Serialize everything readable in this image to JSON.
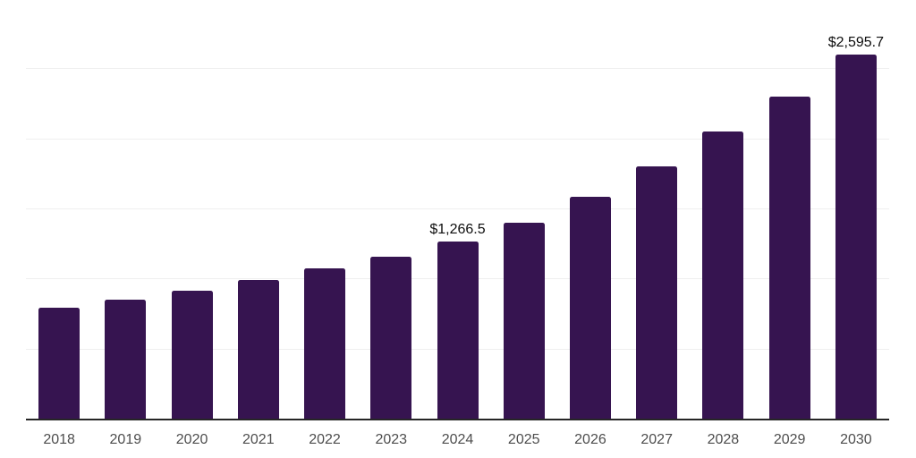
{
  "chart_data": {
    "type": "bar",
    "title": "",
    "xlabel": "",
    "ylabel": "",
    "legend": "none",
    "grid": "horizontal",
    "ylim": [
      0,
      3000
    ],
    "gridline_step": 500,
    "y_tick_labels_visible": false,
    "categories": [
      "2018",
      "2019",
      "2020",
      "2021",
      "2022",
      "2023",
      "2024",
      "2025",
      "2026",
      "2027",
      "2028",
      "2029",
      "2030"
    ],
    "values": [
      790,
      850,
      915,
      990,
      1070,
      1155,
      1266.5,
      1395,
      1580,
      1800,
      2050,
      2300,
      2595.7
    ],
    "data_labels": [
      "",
      "",
      "",
      "",
      "",
      "",
      "$1,266.5",
      "",
      "",
      "",
      "",
      "",
      "$2,595.7"
    ],
    "colors": {
      "bar": "#361450",
      "axis_line": "#262626",
      "gridline": "#efefef",
      "tick_label": "#4d4d4d",
      "data_label": "#0d0d0d",
      "background": "#ffffff"
    }
  }
}
